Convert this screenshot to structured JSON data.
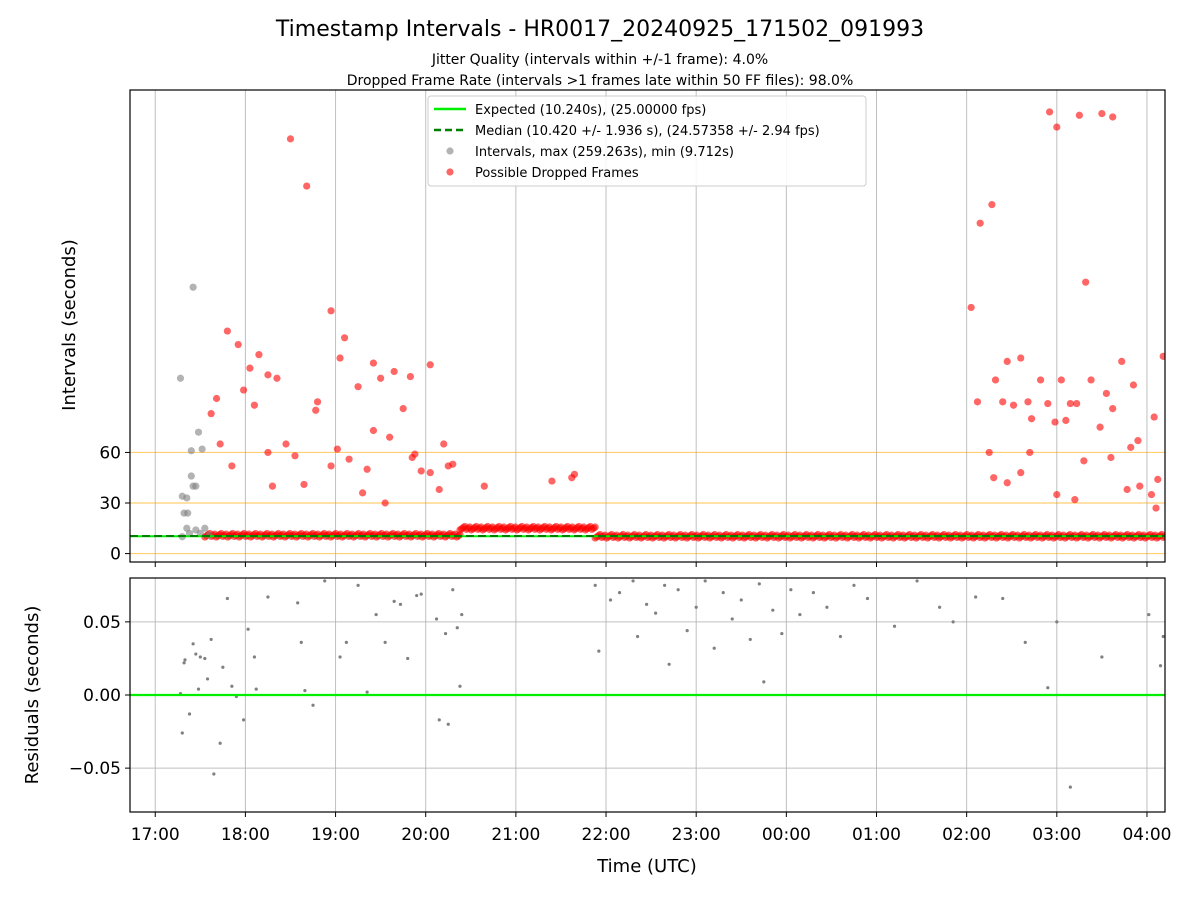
{
  "chart_data": {
    "type": "scatter",
    "title": "Timestamp Intervals - HR0017_20240925_171502_091993",
    "subtitle_lines": [
      "Jitter Quality (intervals within +/-1 frame): 4.0%",
      "Dropped Frame Rate (intervals >1 frames late within 50 FF files): 98.0%"
    ],
    "xlabel": "Time (UTC)",
    "x_ticks": [
      "17:00",
      "18:00",
      "19:00",
      "20:00",
      "21:00",
      "22:00",
      "23:00",
      "00:00",
      "01:00",
      "02:00",
      "03:00",
      "04:00"
    ],
    "x_range_hours_since_midnight_start_day": [
      16.72,
      28.2
    ],
    "panels": [
      {
        "name": "intervals",
        "ylabel": "Intervals (seconds)",
        "y_ticks": [
          "0",
          "30",
          "60"
        ],
        "ylim": [
          -5,
          275
        ],
        "grid": true,
        "hlines": [
          {
            "y": 0,
            "color": "#ffa500"
          },
          {
            "y": 30,
            "color": "#ffa500"
          },
          {
            "y": 60,
            "color": "#ffa500"
          }
        ],
        "legend_position": "top-center",
        "legend": [
          {
            "label": "Expected (10.240s), (25.00000 fps)",
            "style": "solid",
            "color": "#00ee00"
          },
          {
            "label": "Median (10.420 +/- 1.936 s), (24.57358 +/- 2.94 fps)",
            "style": "dashed",
            "color": "#008000"
          },
          {
            "label": "Intervals, max (259.263s), min (9.712s)",
            "style": "marker",
            "color": "#808080"
          },
          {
            "label": "Possible Dropped Frames",
            "style": "marker",
            "color": "#ff0000"
          }
        ],
        "series": [
          {
            "name": "Expected (10.240s), (25.00000 fps)",
            "kind": "line",
            "y": 10.24,
            "color": "#00ee00"
          },
          {
            "name": "Median (10.420 +/- 1.936 s), (24.57358 +/- 2.94 fps)",
            "kind": "line",
            "y": 10.42,
            "color": "#008000"
          },
          {
            "name": "Intervals, max (259.263s), min (9.712s)",
            "kind": "scatter",
            "color": "#808080",
            "points": [
              [
                17.28,
                104
              ],
              [
                17.42,
                158
              ],
              [
                17.3,
                34
              ],
              [
                17.35,
                33
              ],
              [
                17.32,
                24
              ],
              [
                17.36,
                24
              ],
              [
                17.4,
                46
              ],
              [
                17.42,
                40
              ],
              [
                17.45,
                40
              ],
              [
                17.4,
                61
              ],
              [
                17.48,
                72
              ],
              [
                17.52,
                62
              ],
              [
                17.3,
                10
              ],
              [
                17.38,
                12
              ],
              [
                17.45,
                14
              ],
              [
                17.5,
                12
              ],
              [
                17.55,
                15
              ],
              [
                17.6,
                11
              ],
              [
                17.35,
                15
              ]
            ]
          },
          {
            "name": "Possible Dropped Frames",
            "kind": "scatter",
            "color": "#ff0000",
            "baseline_segments": [
              {
                "x0": 17.55,
                "x1": 20.38,
                "y": 10.8
              },
              {
                "x0": 20.38,
                "x1": 21.88,
                "y": 15
              },
              {
                "x0": 21.88,
                "x1": 28.2,
                "y": 10.2
              }
            ],
            "points": [
              [
                18.5,
                246
              ],
              [
                18.68,
                218
              ],
              [
                17.8,
                132
              ],
              [
                17.92,
                124
              ],
              [
                18.15,
                118
              ],
              [
                18.05,
                110
              ],
              [
                18.25,
                106
              ],
              [
                18.35,
                104
              ],
              [
                17.68,
                92
              ],
              [
                17.72,
                65
              ],
              [
                18.1,
                88
              ],
              [
                17.98,
                97
              ],
              [
                17.62,
                83
              ],
              [
                17.85,
                52
              ],
              [
                18.25,
                60
              ],
              [
                18.45,
                65
              ],
              [
                18.55,
                58
              ],
              [
                18.3,
                40
              ],
              [
                18.8,
                90
              ],
              [
                18.95,
                144
              ],
              [
                19.1,
                128
              ],
              [
                19.05,
                116
              ],
              [
                19.25,
                99
              ],
              [
                19.42,
                113
              ],
              [
                19.5,
                104
              ],
              [
                19.65,
                108
              ],
              [
                19.75,
                86
              ],
              [
                19.83,
                105
              ],
              [
                19.42,
                73
              ],
              [
                19.6,
                69
              ],
              [
                19.02,
                62
              ],
              [
                19.15,
                56
              ],
              [
                19.35,
                50
              ],
              [
                20.05,
                112
              ],
              [
                20.2,
                65
              ],
              [
                20.25,
                52
              ],
              [
                20.3,
                53
              ],
              [
                19.88,
                59
              ],
              [
                19.95,
                49
              ],
              [
                20.65,
                40
              ],
              [
                21.62,
                45
              ],
              [
                21.65,
                47
              ],
              [
                21.4,
                43
              ],
              [
                18.78,
                85
              ],
              [
                18.95,
                52
              ],
              [
                19.85,
                57
              ],
              [
                20.05,
                48
              ],
              [
                18.65,
                41
              ],
              [
                19.3,
                36
              ],
              [
                19.55,
                30
              ],
              [
                20.15,
                38
              ],
              [
                26.05,
                146
              ],
              [
                26.12,
                90
              ],
              [
                26.15,
                196
              ],
              [
                26.28,
                207
              ],
              [
                26.32,
                103
              ],
              [
                26.4,
                90
              ],
              [
                26.45,
                114
              ],
              [
                26.52,
                88
              ],
              [
                26.6,
                116
              ],
              [
                26.68,
                90
              ],
              [
                26.72,
                80
              ],
              [
                26.82,
                103
              ],
              [
                26.9,
                89
              ],
              [
                26.98,
                78
              ],
              [
                26.6,
                48
              ],
              [
                26.7,
                60
              ],
              [
                26.45,
                42
              ],
              [
                26.25,
                60
              ],
              [
                27.05,
                103
              ],
              [
                27.15,
                89
              ],
              [
                27.22,
                89
              ],
              [
                27.32,
                161
              ],
              [
                27.38,
                103
              ],
              [
                27.48,
                75
              ],
              [
                27.55,
                95
              ],
              [
                27.62,
                86
              ],
              [
                27.72,
                114
              ],
              [
                27.82,
                63
              ],
              [
                27.9,
                67
              ],
              [
                28.08,
                81
              ],
              [
                28.18,
                117
              ],
              [
                27.85,
                100
              ],
              [
                26.92,
                262
              ],
              [
                27.0,
                253
              ],
              [
                27.25,
                260
              ],
              [
                27.5,
                261
              ],
              [
                27.62,
                259
              ],
              [
                27.1,
                79
              ],
              [
                27.3,
                55
              ],
              [
                27.6,
                57
              ],
              [
                27.78,
                38
              ],
              [
                27.92,
                40
              ],
              [
                28.12,
                44
              ],
              [
                28.05,
                35
              ],
              [
                28.1,
                27
              ],
              [
                26.3,
                45
              ],
              [
                27.0,
                35
              ],
              [
                27.2,
                32
              ]
            ]
          }
        ]
      },
      {
        "name": "residuals",
        "ylabel": "Residuals (seconds)",
        "y_ticks": [
          "0.05",
          "0.00",
          "−0.05"
        ],
        "ylim": [
          -0.08,
          0.08
        ],
        "grid": true,
        "series": [
          {
            "name": "zero line",
            "kind": "line",
            "y": 0,
            "color": "#00ee00"
          },
          {
            "name": "residuals",
            "kind": "scatter",
            "color": "#808080",
            "points": [
              [
                17.28,
                0.001
              ],
              [
                17.3,
                -0.026
              ],
              [
                17.32,
                0.022
              ],
              [
                17.33,
                0.024
              ],
              [
                17.38,
                -0.013
              ],
              [
                17.42,
                0.035
              ],
              [
                17.45,
                0.028
              ],
              [
                17.48,
                0.004
              ],
              [
                17.5,
                0.026
              ],
              [
                17.55,
                0.025
              ],
              [
                17.58,
                0.011
              ],
              [
                17.62,
                0.038
              ],
              [
                17.65,
                -0.054
              ],
              [
                17.72,
                -0.033
              ],
              [
                17.75,
                0.019
              ],
              [
                17.8,
                0.066
              ],
              [
                17.85,
                0.006
              ],
              [
                17.9,
                -0.001
              ],
              [
                17.98,
                -0.017
              ],
              [
                18.03,
                0.045
              ],
              [
                18.1,
                0.026
              ],
              [
                18.12,
                0.004
              ],
              [
                18.25,
                0.067
              ],
              [
                18.58,
                0.063
              ],
              [
                18.62,
                0.036
              ],
              [
                18.66,
                0.003
              ],
              [
                18.75,
                -0.007
              ],
              [
                18.88,
                0.078
              ],
              [
                19.05,
                0.026
              ],
              [
                19.12,
                0.036
              ],
              [
                19.25,
                0.075
              ],
              [
                19.35,
                0.002
              ],
              [
                19.45,
                0.055
              ],
              [
                19.55,
                0.036
              ],
              [
                19.65,
                0.064
              ],
              [
                19.72,
                0.062
              ],
              [
                19.8,
                0.025
              ],
              [
                19.9,
                0.068
              ],
              [
                19.95,
                0.069
              ],
              [
                20.12,
                0.052
              ],
              [
                20.15,
                -0.017
              ],
              [
                20.22,
                0.042
              ],
              [
                20.25,
                -0.02
              ],
              [
                20.3,
                0.072
              ],
              [
                20.35,
                0.046
              ],
              [
                20.38,
                0.006
              ],
              [
                20.4,
                0.055
              ],
              [
                21.88,
                0.075
              ],
              [
                21.92,
                0.03
              ],
              [
                22.05,
                0.065
              ],
              [
                22.15,
                0.07
              ],
              [
                22.3,
                0.078
              ],
              [
                22.35,
                0.04
              ],
              [
                22.45,
                0.062
              ],
              [
                22.55,
                0.056
              ],
              [
                22.65,
                0.075
              ],
              [
                22.7,
                0.021
              ],
              [
                22.8,
                0.072
              ],
              [
                22.9,
                0.044
              ],
              [
                23.0,
                0.06
              ],
              [
                23.1,
                0.078
              ],
              [
                23.2,
                0.032
              ],
              [
                23.3,
                0.07
              ],
              [
                23.4,
                0.052
              ],
              [
                23.5,
                0.065
              ],
              [
                23.6,
                0.038
              ],
              [
                23.7,
                0.076
              ],
              [
                23.75,
                0.009
              ],
              [
                23.85,
                0.058
              ],
              [
                23.95,
                0.042
              ],
              [
                24.05,
                0.072
              ],
              [
                24.15,
                0.055
              ],
              [
                24.3,
                0.07
              ],
              [
                24.45,
                0.06
              ],
              [
                24.6,
                0.04
              ],
              [
                24.75,
                0.075
              ],
              [
                24.9,
                0.066
              ],
              [
                25.2,
                0.047
              ],
              [
                25.45,
                0.078
              ],
              [
                25.7,
                0.06
              ],
              [
                25.85,
                0.05
              ],
              [
                26.1,
                0.067
              ],
              [
                26.4,
                0.066
              ],
              [
                26.65,
                0.036
              ],
              [
                26.9,
                0.005
              ],
              [
                27.0,
                0.05
              ],
              [
                27.15,
                -0.063
              ],
              [
                27.5,
                0.026
              ],
              [
                28.02,
                0.055
              ],
              [
                28.15,
                0.02
              ],
              [
                28.18,
                0.04
              ]
            ]
          }
        ]
      }
    ]
  }
}
